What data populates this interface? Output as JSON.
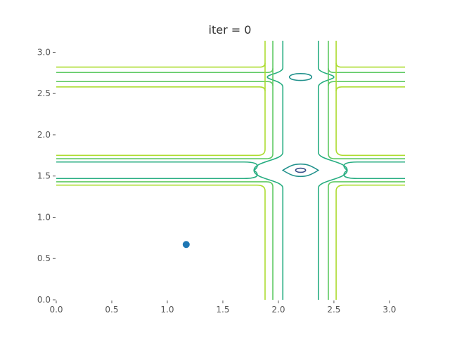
{
  "chart_data": {
    "type": "contour",
    "title": "iter = 0",
    "xlabel": "",
    "ylabel": "",
    "xlim": [
      0,
      3.14
    ],
    "ylim": [
      0,
      3.14
    ],
    "grid": false,
    "x_ticks": [
      "0.0",
      "0.5",
      "1.0",
      "1.5",
      "2.0",
      "2.5",
      "3.0"
    ],
    "y_ticks": [
      "0.0",
      "0.5",
      "1.0",
      "1.5",
      "2.0",
      "2.5",
      "3.0"
    ],
    "x_tick_values": [
      0,
      0.5,
      1.0,
      1.5,
      2.0,
      2.5,
      3.0
    ],
    "y_tick_values": [
      0,
      0.5,
      1.0,
      1.5,
      2.0,
      2.5,
      3.0
    ],
    "levels": [
      {
        "level": 1,
        "color": "#3b528b",
        "dx": 0.05,
        "dy": 0.035
      },
      {
        "level": 2,
        "color": "#21918c",
        "dx": 0.1,
        "dy": 0.07
      },
      {
        "level": 3,
        "color": "#27ad81",
        "dx": 0.16,
        "dy": 0.1
      },
      {
        "level": 4,
        "color": "#5ec962",
        "dx": 0.25,
        "dy": 0.14
      },
      {
        "level": 5,
        "color": "#addc30",
        "dx": 0.32,
        "dy": 0.18
      }
    ],
    "minima": [
      {
        "x": 2.2,
        "y": 1.57,
        "deepest": true
      },
      {
        "x": 2.2,
        "y": 2.7,
        "deepest": false
      }
    ],
    "point": {
      "x": 1.17,
      "y": 0.67,
      "color": "#1f77b4"
    }
  }
}
